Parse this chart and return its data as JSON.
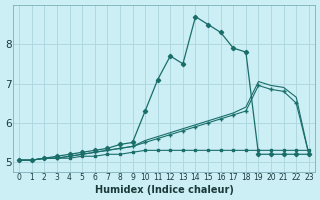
{
  "xlabel": "Humidex (Indice chaleur)",
  "background_color": "#cceef5",
  "grid_color": "#b0d8e0",
  "line_color": "#1a6e6a",
  "xlim": [
    -0.5,
    23.5
  ],
  "ylim": [
    4.75,
    9.0
  ],
  "xticks": [
    0,
    1,
    2,
    3,
    4,
    5,
    6,
    7,
    8,
    9,
    10,
    11,
    12,
    13,
    14,
    15,
    16,
    17,
    18,
    19,
    20,
    21,
    22,
    23
  ],
  "yticks": [
    5,
    6,
    7,
    8
  ],
  "line_flat_x": [
    0,
    1,
    2,
    3,
    4,
    5,
    6,
    7,
    8,
    9,
    10,
    11,
    12,
    13,
    14,
    15,
    16,
    17,
    18,
    19,
    20,
    21,
    22,
    23
  ],
  "line_flat_y": [
    5.05,
    5.05,
    5.1,
    5.1,
    5.1,
    5.15,
    5.15,
    5.2,
    5.2,
    5.25,
    5.3,
    5.3,
    5.3,
    5.3,
    5.3,
    5.3,
    5.3,
    5.3,
    5.3,
    5.3,
    5.3,
    5.3,
    5.3,
    5.3
  ],
  "line_peak_x": [
    0,
    1,
    2,
    3,
    4,
    5,
    6,
    7,
    8,
    9,
    10,
    11,
    12,
    13,
    14,
    15,
    16,
    17,
    18,
    19,
    20,
    21,
    22,
    23
  ],
  "line_peak_y": [
    5.05,
    5.05,
    5.1,
    5.15,
    5.2,
    5.25,
    5.3,
    5.35,
    5.45,
    5.5,
    6.3,
    7.1,
    7.7,
    7.5,
    8.7,
    8.5,
    8.3,
    7.9,
    7.8,
    5.2,
    5.2,
    5.2,
    5.2,
    5.2
  ],
  "line_mid1_x": [
    0,
    1,
    2,
    3,
    4,
    5,
    6,
    7,
    8,
    9,
    10,
    11,
    12,
    13,
    14,
    15,
    16,
    17,
    18,
    19,
    20,
    21,
    22,
    23
  ],
  "line_mid1_y": [
    5.05,
    5.05,
    5.1,
    5.1,
    5.15,
    5.2,
    5.25,
    5.3,
    5.35,
    5.4,
    5.5,
    5.6,
    5.7,
    5.8,
    5.9,
    6.0,
    6.1,
    6.2,
    6.3,
    6.95,
    6.85,
    6.8,
    6.5,
    5.2
  ],
  "line_mid2_x": [
    0,
    1,
    2,
    3,
    4,
    5,
    6,
    7,
    8,
    9,
    10,
    11,
    12,
    13,
    14,
    15,
    16,
    17,
    18,
    19,
    20,
    21,
    22,
    23
  ],
  "line_mid2_y": [
    5.05,
    5.05,
    5.1,
    5.1,
    5.15,
    5.2,
    5.25,
    5.3,
    5.35,
    5.4,
    5.55,
    5.65,
    5.75,
    5.85,
    5.95,
    6.05,
    6.15,
    6.25,
    6.4,
    7.05,
    6.95,
    6.9,
    6.65,
    5.2
  ]
}
